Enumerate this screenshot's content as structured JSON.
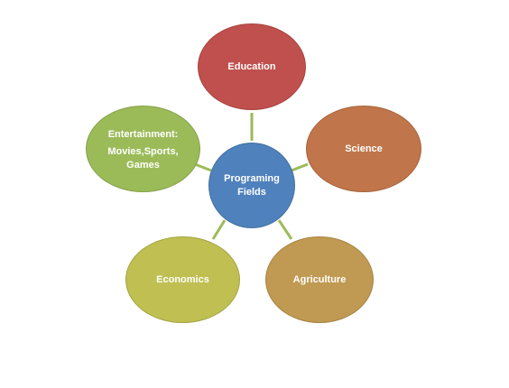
{
  "diagram": {
    "center": {
      "line1": "Programing",
      "line2": "Fields"
    },
    "nodes": {
      "education": {
        "label": "Education"
      },
      "science": {
        "label": "Science"
      },
      "agriculture": {
        "label": "Agriculture"
      },
      "economics": {
        "label": "Economics"
      },
      "entertainment": {
        "line1": "Entertainment:",
        "line2": "Movies,Sports,",
        "line3": "Games"
      }
    },
    "colors": {
      "center": "#4f81bd",
      "education": "#c0504d",
      "science": "#c0764a",
      "agriculture": "#c09a52",
      "economics": "#bfbf52",
      "entertainment": "#9bbb59",
      "connector": "#9bbb59"
    }
  }
}
